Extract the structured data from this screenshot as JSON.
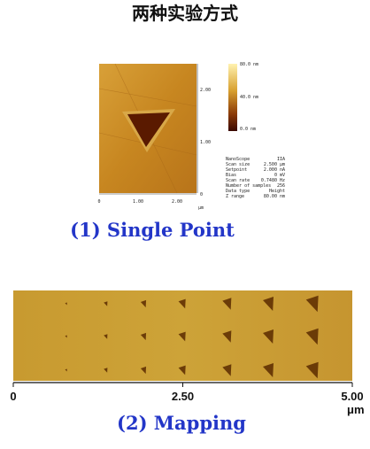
{
  "title": "两种实验方式",
  "single_point": {
    "colorbar_labels": [
      "80.0 nm",
      "40.0 nm",
      "0.0 nm"
    ],
    "y_axis_labels": [
      "2.00",
      "1.00",
      "0"
    ],
    "x_axis_labels": [
      "0",
      "1.00",
      "2.00"
    ],
    "x_unit": "μm",
    "params": [
      [
        "NanoScope",
        "IIA"
      ],
      [
        "Scan size",
        "2.500 μm"
      ],
      [
        "Setpoint",
        "2.000 nA"
      ],
      [
        "Bias",
        "0 mV"
      ],
      [
        "Scan rate",
        "0.7480 Hz"
      ],
      [
        "Number of samples",
        "256"
      ],
      [
        "Data type",
        "Height"
      ],
      [
        "Z range",
        "80.00 nm"
      ]
    ],
    "caption": "(1) Single Point"
  },
  "mapping": {
    "x_axis_labels": [
      "0",
      "2.50",
      "5.00"
    ],
    "x_unit": "μm",
    "caption": "(2) Mapping"
  }
}
